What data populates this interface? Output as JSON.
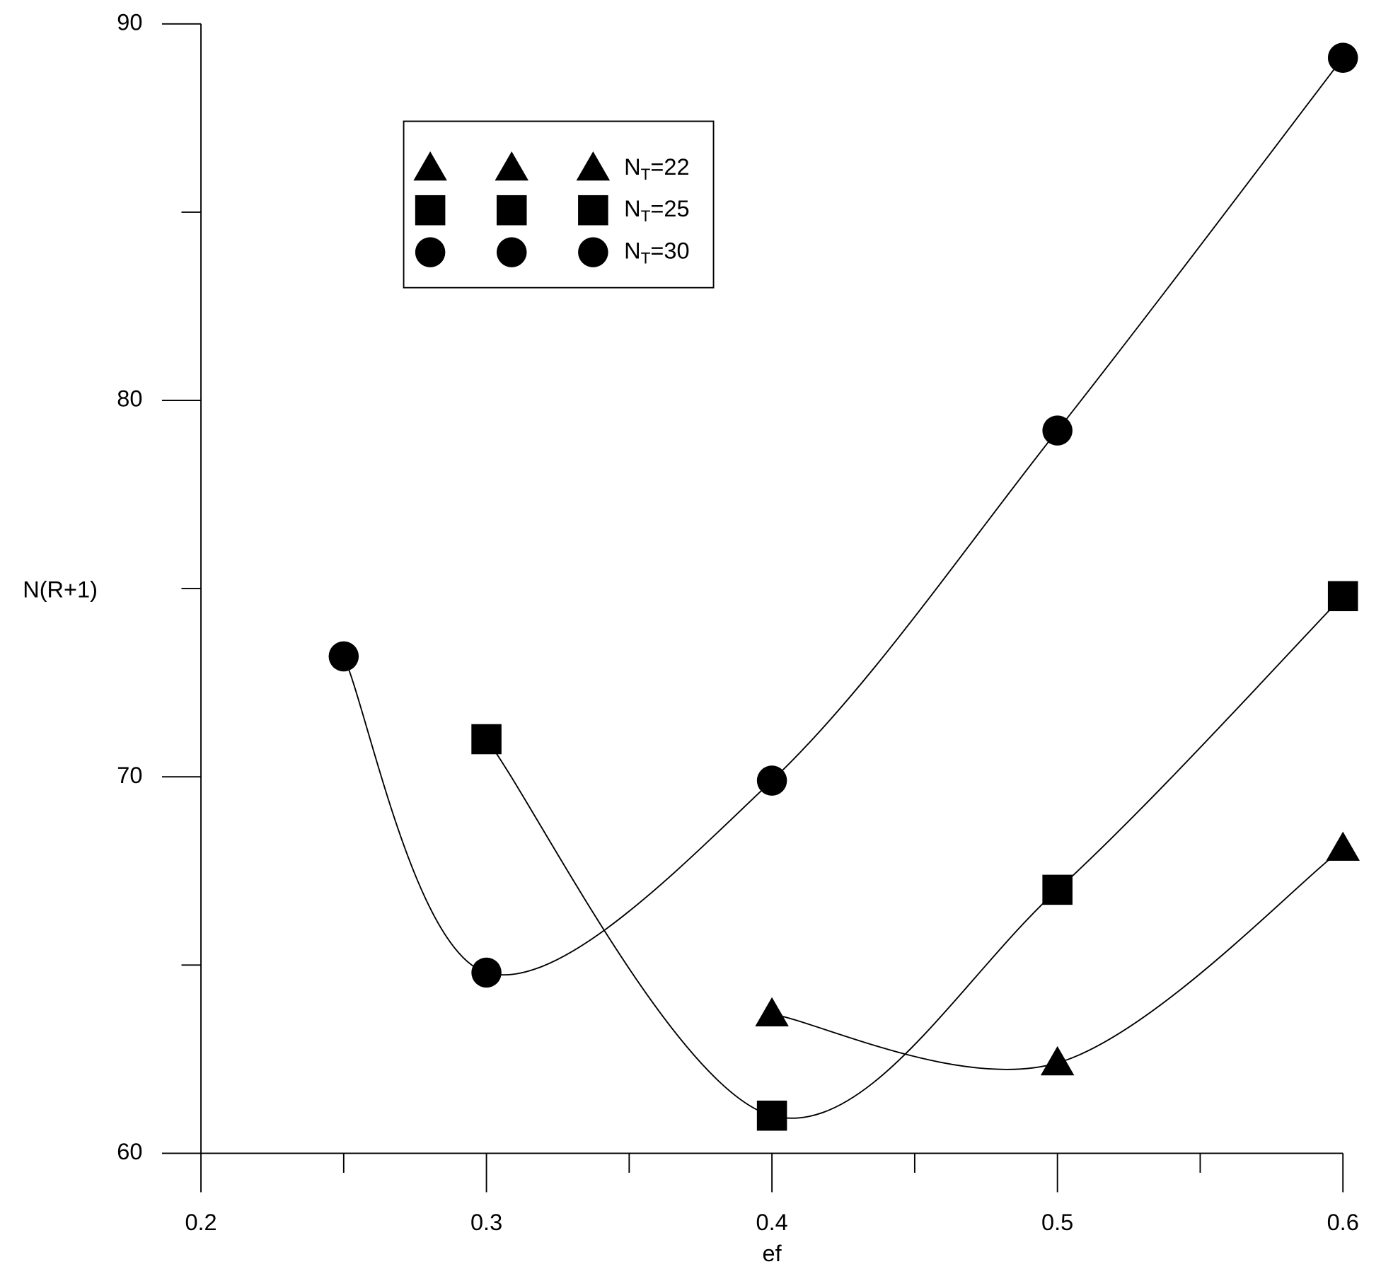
{
  "chart_data": {
    "type": "line",
    "x_label": "ef",
    "y_label": "N(R+1)",
    "xlim": [
      0.2,
      0.6
    ],
    "xticks": [
      0.2,
      0.3,
      0.4,
      0.5,
      0.6
    ],
    "xminor": [
      0.25,
      0.35,
      0.45,
      0.55
    ],
    "ylim": [
      60,
      90
    ],
    "yticks": [
      60,
      70,
      80,
      90
    ],
    "yminor": [
      65,
      75,
      85
    ],
    "grid": false,
    "legend": "upper left",
    "series": [
      {
        "name": "NT=22",
        "marker": "triangle",
        "color": "#000000",
        "x": [
          0.4,
          0.5,
          0.6
        ],
        "values": [
          63.7,
          62.4,
          68.1
        ]
      },
      {
        "name": "NT=25",
        "marker": "square",
        "color": "#000000",
        "x": [
          0.3,
          0.4,
          0.5,
          0.6
        ],
        "values": [
          71.0,
          61.0,
          67.0,
          74.8
        ]
      },
      {
        "name": "NT=30",
        "marker": "circle",
        "color": "#000000",
        "x": [
          0.25,
          0.3,
          0.4,
          0.5,
          0.6
        ],
        "values": [
          73.2,
          64.8,
          69.9,
          79.2,
          89.1
        ]
      }
    ]
  }
}
